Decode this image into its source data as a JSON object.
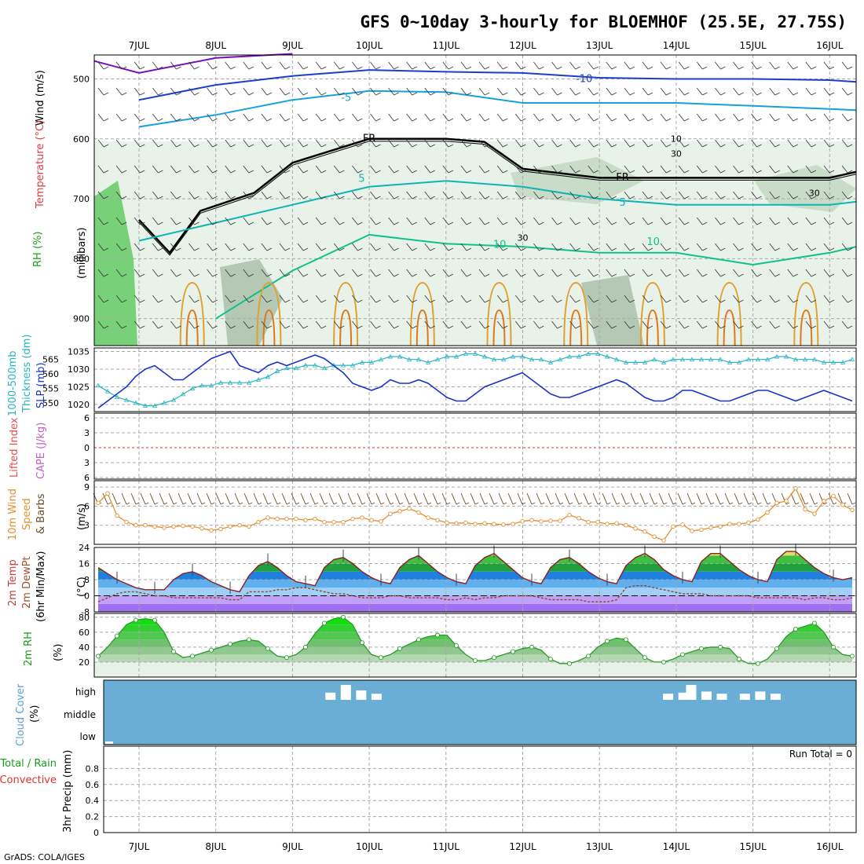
{
  "title": "GFS 0~10day 3-hourly for BLOEMHOF (25.5E, 27.75S)",
  "footer": "GrADS: COLA/IGES",
  "dates": [
    "7JUL",
    "8JUL",
    "9JUL",
    "10JUL",
    "11JUL",
    "12JUL",
    "13JUL",
    "14JUL",
    "15JUL",
    "16JUL"
  ],
  "colors": {
    "t_purple": "#7a10b4",
    "t_blue": "#1840c8",
    "t_cyan": "#18a0dc",
    "t_teal": "#10b4b4",
    "t_green": "#10c08c",
    "t_gold": "#e0a030",
    "t_orange": "#e07818",
    "freezing": "#000000",
    "slp": "#1a32c8",
    "thickness": "#28b4c0",
    "wind": "#e09030",
    "barb": "#6b4a2a",
    "cloud_bg": "#6aaed6",
    "cloud_bar": "#ffffff",
    "rh_fill": "#3cc83c",
    "rh_line": "#2a9a2a",
    "li_zero": "#e03030"
  },
  "labels": {
    "p1_wind": "Wind (m/s)",
    "p1_temp": "Temperature (°C)",
    "p1_rh": "RH (%)",
    "p1_units": "(millibars)",
    "p2_thick_a": "1000-500mb",
    "p2_thick_b": "Thickness (dm)",
    "p2_slp": "SLP (mb)",
    "p3_li": "Lifted Index",
    "p3_cape": "CAPE (J/kg)",
    "p4_a": "10m Wind",
    "p4_b": "Speed",
    "p4_c": "& Barbs",
    "p4_units": "(m/s)",
    "p5_a": "2m Temp",
    "p5_b": "2m DewPt",
    "p5_c": "(6hr Min/Max)",
    "p5_units": "(°C)",
    "p6_a": "2m RH",
    "p6_units": "(%)",
    "p7_a": "Cloud Cover",
    "p7_units": "(%)",
    "p8_a": "Total / Rain",
    "p8_b": "Convective",
    "p8_c": "3hr Precip (mm)",
    "run_total": "Run Total = 0"
  },
  "contour_labels": {
    "t_minus10": "-10",
    "t_minus5": "-5",
    "t_fr": "FR",
    "t_5": "5",
    "t_10": "10",
    "rh_30": "30",
    "rh_10": "10"
  },
  "chart_data": [
    {
      "type": "line",
      "name": "upper-air",
      "ylabel": "(millibars)",
      "ylim": [
        460,
        945
      ],
      "yticks": [
        500,
        600,
        700,
        800,
        900
      ],
      "x_label": "day index",
      "isotherms": [
        {
          "label": "-10",
          "level_by_day": [
            [
              0,
              535
            ],
            [
              1,
              510
            ],
            [
              2,
              495
            ],
            [
              3,
              485
            ],
            [
              4,
              488
            ],
            [
              5,
              490
            ],
            [
              6,
              498
            ],
            [
              7,
              500
            ],
            [
              8,
              500
            ],
            [
              9,
              502
            ],
            [
              9.7,
              505
            ]
          ]
        },
        {
          "label": "-5",
          "level_by_day": [
            [
              0,
              580
            ],
            [
              1,
              560
            ],
            [
              2,
              535
            ],
            [
              3,
              520
            ],
            [
              4,
              522
            ],
            [
              5,
              540
            ],
            [
              6,
              540
            ],
            [
              7,
              540
            ],
            [
              8,
              545
            ],
            [
              9,
              550
            ],
            [
              9.7,
              552
            ]
          ]
        },
        {
          "label": "FR",
          "level_by_day": [
            [
              0,
              735
            ],
            [
              0.4,
              790
            ],
            [
              0.8,
              720
            ],
            [
              1.5,
              690
            ],
            [
              2,
              640
            ],
            [
              3,
              600
            ],
            [
              4,
              600
            ],
            [
              4.5,
              605
            ],
            [
              5,
              650
            ],
            [
              6,
              665
            ],
            [
              7,
              665
            ],
            [
              8,
              665
            ],
            [
              9,
              665
            ],
            [
              9.7,
              655
            ]
          ]
        },
        {
          "label": "5",
          "level_by_day": [
            [
              0,
              770
            ],
            [
              1,
              740
            ],
            [
              2,
              710
            ],
            [
              3,
              680
            ],
            [
              4,
              670
            ],
            [
              5,
              680
            ],
            [
              6,
              700
            ],
            [
              7,
              710
            ],
            [
              8,
              710
            ],
            [
              9,
              710
            ],
            [
              9.7,
              705
            ]
          ]
        },
        {
          "label": "10",
          "level_by_day": [
            [
              1,
              900
            ],
            [
              2,
              820
            ],
            [
              3,
              760
            ],
            [
              4,
              775
            ],
            [
              5,
              780
            ],
            [
              6,
              790
            ],
            [
              7,
              790
            ],
            [
              8,
              810
            ],
            [
              9,
              790
            ],
            [
              9.7,
              780
            ]
          ]
        }
      ]
    },
    {
      "type": "line",
      "name": "SLP and thickness",
      "series": [
        {
          "name": "SLP (mb)",
          "ylim": [
            1018,
            1036
          ],
          "values": [
            1019,
            1021,
            1023,
            1025,
            1028,
            1030,
            1031,
            1029,
            1027,
            1027,
            1029,
            1031,
            1033,
            1034,
            1035,
            1031,
            1030,
            1029,
            1031,
            1032,
            1031,
            1032,
            1033,
            1034,
            1033,
            1031,
            1029,
            1026,
            1025,
            1024,
            1025,
            1027,
            1026,
            1026,
            1027,
            1026,
            1024,
            1022,
            1021,
            1021,
            1023,
            1025,
            1026,
            1027,
            1028,
            1029,
            1027,
            1025,
            1023,
            1022,
            1022,
            1023,
            1024,
            1025,
            1026,
            1027,
            1026,
            1024,
            1022,
            1021,
            1021,
            1022,
            1024,
            1024,
            1023,
            1022,
            1021,
            1021,
            1022,
            1023,
            1024,
            1024,
            1023,
            1022,
            1021,
            1022,
            1023,
            1024,
            1023,
            1022,
            1021
          ]
        },
        {
          "name": "Thickness (dm)",
          "ylim": [
            547,
            569
          ],
          "values": [
            556,
            554,
            552,
            551,
            550,
            549,
            549,
            550,
            551,
            553,
            555,
            556,
            556,
            557,
            557,
            557,
            557,
            558,
            559,
            561,
            562,
            562,
            563,
            563,
            562,
            563,
            563,
            563,
            564,
            564,
            565,
            566,
            566,
            565,
            565,
            564,
            565,
            566,
            566,
            567,
            567,
            566,
            565,
            565,
            566,
            566,
            565,
            565,
            564,
            565,
            566,
            566,
            567,
            567,
            566,
            565,
            564,
            564,
            564,
            565,
            564,
            565,
            565,
            565,
            565,
            565,
            565,
            564,
            564,
            565,
            565,
            565,
            566,
            566,
            565,
            565,
            565,
            564,
            564,
            564,
            565
          ]
        }
      ],
      "yticks_left": [
        550,
        555,
        560,
        565
      ],
      "yticks_right": [
        1020,
        1025,
        1030,
        1035
      ]
    },
    {
      "type": "line",
      "name": "Lifted Index / CAPE",
      "yticks": [
        "6",
        "3",
        "0",
        "3",
        "6"
      ],
      "zero_line": true,
      "values": []
    },
    {
      "type": "line",
      "name": "10m wind speed",
      "ylim": [
        0,
        10
      ],
      "yticks": [
        3,
        6,
        9
      ],
      "values": [
        6.5,
        8,
        4.5,
        3.5,
        3,
        3,
        2.8,
        2.6,
        2.8,
        2.9,
        2.8,
        2.5,
        2.2,
        2.4,
        2.8,
        3,
        2.8,
        3.5,
        4.2,
        4,
        4,
        4,
        3.8,
        4,
        3.5,
        3.5,
        3.5,
        4,
        4.2,
        3.8,
        3.6,
        4.8,
        5.2,
        5.6,
        5,
        4.2,
        3.8,
        3.4,
        3.3,
        3.4,
        3.2,
        3.3,
        3.2,
        3.1,
        3.2,
        3.6,
        3.8,
        3.6,
        3.7,
        3.7,
        4.6,
        4.1,
        3.5,
        3.5,
        3.2,
        3.3,
        3,
        2.5,
        2,
        1.2,
        0.6,
        2.8,
        3.1,
        2.1,
        2.3,
        2.6,
        2.8,
        3.2,
        3.2,
        3.4,
        3.9,
        5,
        6.5,
        6.8,
        8.8,
        5.5,
        4.8,
        6.8,
        7.6,
        6.2,
        5.4
      ]
    },
    {
      "type": "area",
      "name": "2m temp and dewpoint",
      "ylim": [
        -8,
        24
      ],
      "yticks": [
        -8,
        0,
        8,
        16,
        24
      ],
      "series": [
        {
          "name": "2m Temp",
          "values": [
            14,
            11,
            8,
            6,
            4,
            3,
            3,
            3,
            8,
            11,
            12,
            10,
            7,
            5,
            3,
            2,
            10,
            15,
            17,
            14,
            10,
            7,
            6,
            5,
            14,
            18,
            19,
            16,
            12,
            9,
            7,
            6,
            14,
            18,
            20,
            16,
            12,
            9,
            7,
            6,
            15,
            19,
            21,
            17,
            13,
            9,
            7,
            6,
            14,
            18,
            19,
            16,
            12,
            9,
            7,
            6,
            15,
            19,
            21,
            18,
            13,
            10,
            8,
            7,
            17,
            21,
            21,
            17,
            13,
            10,
            8,
            7,
            18,
            22,
            22,
            18,
            14,
            11,
            9,
            8,
            9
          ]
        },
        {
          "name": "2m DewPt",
          "values": [
            -3,
            -1,
            1,
            2,
            2,
            1,
            0,
            0,
            -1,
            -1,
            -1,
            -1,
            -1,
            -1,
            -2,
            -2,
            2,
            2,
            2,
            3,
            3,
            4,
            4,
            3,
            2,
            1,
            1,
            0,
            -1,
            -1,
            -1,
            0,
            0,
            -1,
            -1,
            -1,
            -1,
            -2,
            -2,
            -1,
            -2,
            -1,
            -1,
            0,
            0,
            0,
            0,
            -1,
            -2,
            -2,
            -2,
            -2,
            -3,
            -3,
            -3,
            -2,
            4,
            5,
            5,
            4,
            3,
            2,
            1,
            1,
            1,
            0,
            0,
            0,
            0,
            0,
            -1,
            -1,
            -1,
            -1,
            -1,
            -2,
            -1,
            -1,
            -2,
            -2,
            -1
          ]
        }
      ]
    },
    {
      "type": "area",
      "name": "2m RH",
      "ylim": [
        0,
        85
      ],
      "yticks": [
        20,
        40,
        60,
        80
      ],
      "values": [
        28,
        40,
        55,
        70,
        76,
        78,
        76,
        60,
        34,
        26,
        28,
        32,
        36,
        40,
        44,
        48,
        50,
        48,
        38,
        28,
        26,
        30,
        40,
        58,
        72,
        78,
        80,
        70,
        46,
        30,
        26,
        30,
        38,
        44,
        50,
        54,
        56,
        56,
        42,
        30,
        22,
        22,
        26,
        30,
        34,
        38,
        40,
        36,
        24,
        18,
        18,
        22,
        28,
        40,
        48,
        52,
        50,
        38,
        26,
        20,
        20,
        24,
        30,
        34,
        38,
        40,
        40,
        38,
        24,
        18,
        18,
        24,
        38,
        54,
        64,
        68,
        72,
        60,
        40,
        30,
        28
      ]
    },
    {
      "type": "bar",
      "name": "Cloud cover",
      "categories": [
        "high",
        "middle",
        "low"
      ],
      "high_by_day": [
        [
          2.5,
          0.3
        ],
        [
          2.7,
          1
        ],
        [
          2.9,
          0.5
        ],
        [
          3.1,
          0.2
        ],
        [
          6.9,
          0.2
        ],
        [
          7.1,
          0.3
        ],
        [
          7.2,
          1
        ],
        [
          7.4,
          0.4
        ],
        [
          7.6,
          0.2
        ],
        [
          7.9,
          0.2
        ],
        [
          8.1,
          0.4
        ],
        [
          8.3,
          0.2
        ]
      ],
      "low_by_day": [
        [
          0.0,
          0.1
        ]
      ]
    },
    {
      "type": "line",
      "name": "3hr precip",
      "ylim": [
        0,
        1
      ],
      "yticks": [
        0,
        0.2,
        0.4,
        0.6,
        0.8
      ],
      "values": []
    }
  ]
}
